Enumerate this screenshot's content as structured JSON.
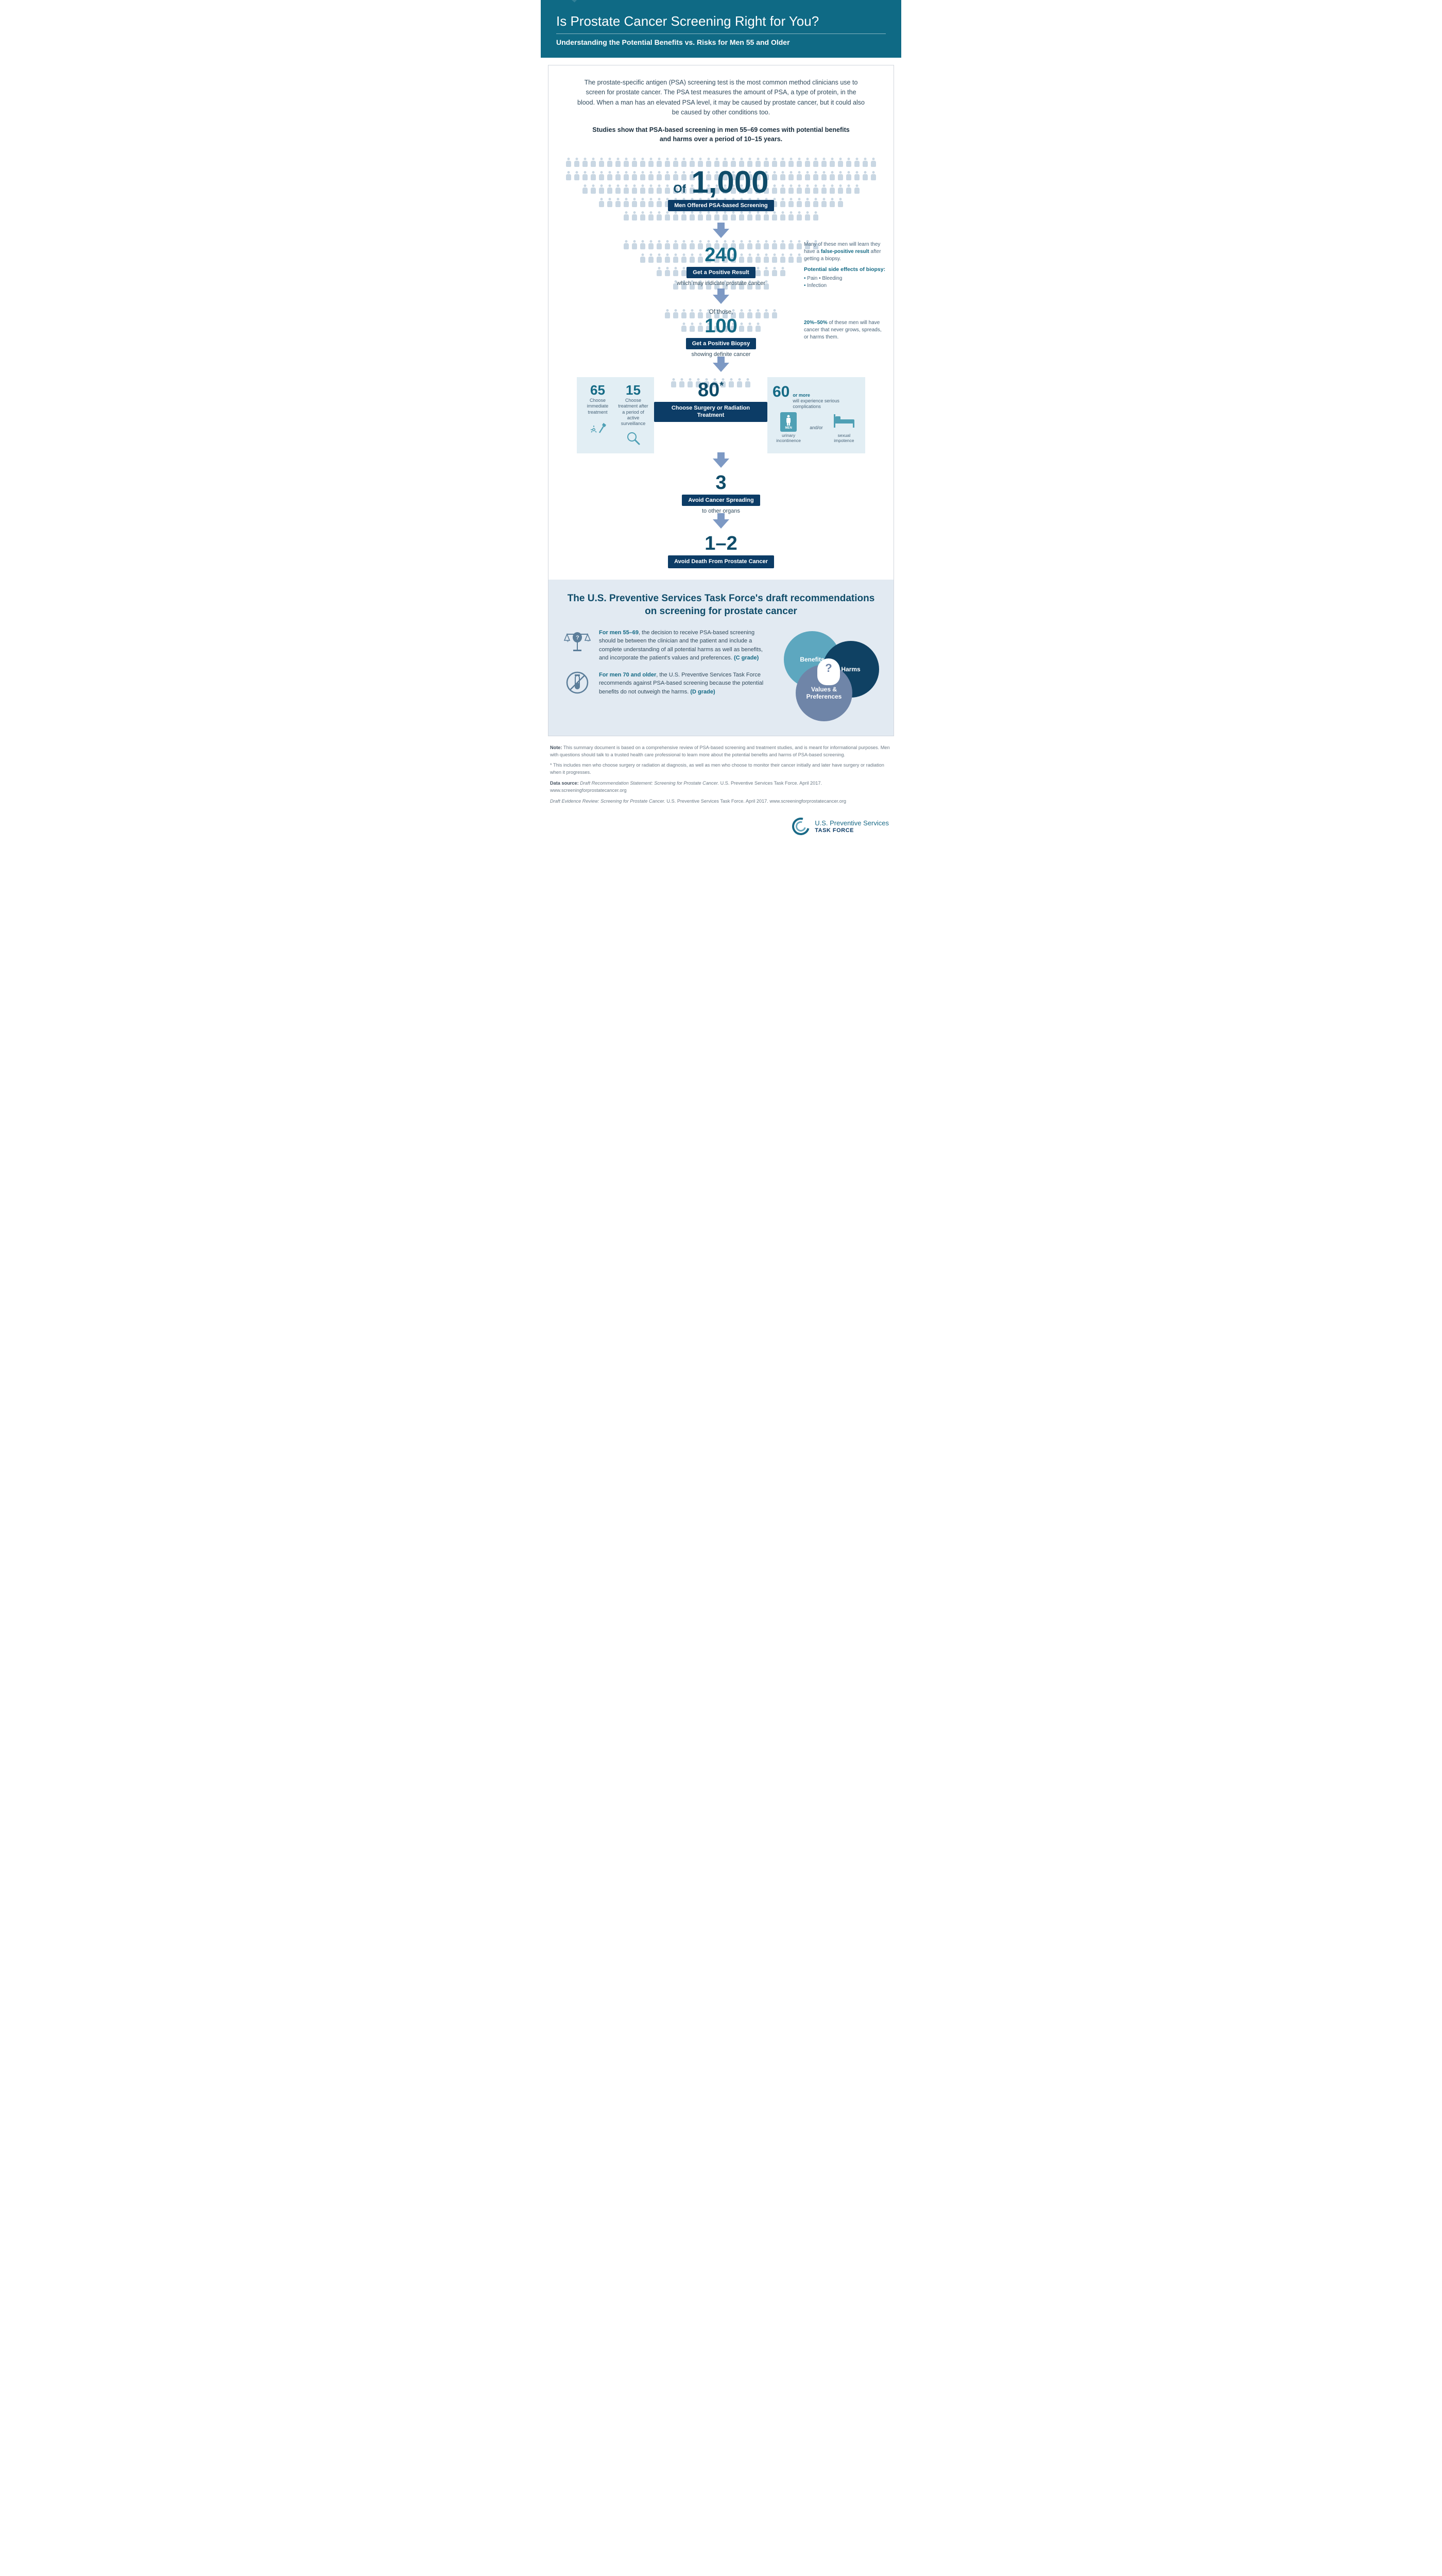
{
  "header": {
    "title": "Is Prostate Cancer Screening Right for You?",
    "subtitle": "Understanding the Potential Benefits vs. Risks for Men 55 and Older",
    "bg_color": "#0f6a85"
  },
  "intro": {
    "para": "The prostate-specific antigen (PSA) screening test is the most common method clinicians use to screen for prostate cancer. The PSA test measures the amount of PSA, a type of protein, in the blood. When a man has an elevated PSA level, it may be caused by prostate cancer, but it could also be caused by other conditions too.",
    "bold": "Studies show that PSA-based screening in men 55–69 comes with potential benefits and harms over a period of 10–15 years."
  },
  "funnel": {
    "stage1": {
      "of": "Of",
      "number": "1,000",
      "label": "Men Offered PSA-based Screening",
      "people_rows": [
        38,
        38,
        34,
        30,
        24
      ]
    },
    "stage2": {
      "number": "240",
      "label": "Get a Positive Result",
      "subtext": "which may indicate prostate cancer",
      "people_rows": [
        24,
        20,
        16,
        12
      ],
      "note": {
        "line1": "Many of these men will learn they have a",
        "bold": "false-positive result",
        "line2": "after getting a biopsy.",
        "head": "Potential side effects of biopsy:",
        "items": [
          "Pain • Bleeding",
          "Infection"
        ]
      }
    },
    "stage3": {
      "pretext": "Of those,",
      "number": "100",
      "label": "Get a Positive Biopsy",
      "subtext": "showing definite cancer",
      "people_rows": [
        14,
        10
      ],
      "note": {
        "bold": "20%–50%",
        "text": " of these men will have cancer that never grows, spreads, or harms them."
      }
    },
    "stage4": {
      "number": "80",
      "star": "*",
      "label": "Choose Surgery or Radiation Treatment",
      "people_rows": [
        10
      ],
      "left": {
        "a_num": "65",
        "a_text": "Choose immediate treatment",
        "b_num": "15",
        "b_text": "Choose treatment after a period of active surveillance"
      },
      "right": {
        "num": "60",
        "or_more": "or more",
        "text": "will experience serious complications",
        "andor": "and/or",
        "comp_a": "urinary incontinence",
        "comp_b": "sexual impotence",
        "men_label": "MEN"
      }
    },
    "stage5": {
      "number": "3",
      "label": "Avoid Cancer Spreading",
      "subtext": "to other organs"
    },
    "stage6": {
      "number": "1–2",
      "label": "Avoid Death From Prostate Cancer"
    }
  },
  "recs": {
    "title": "The U.S. Preventive Services Task Force's draft recommendations on screening for prostate cancer",
    "item1": {
      "lead": "For men 55–69",
      "text": ", the decision to receive PSA-based screening should be between the clinician and the patient and include a complete understanding of all potential harms as well as benefits, and incorporate the patient's values and preferences. ",
      "grade": "(C grade)"
    },
    "item2": {
      "lead": "For men 70 and older",
      "text": ", the U.S. Preventive Services Task Force recommends against PSA-based screening because the potential benefits do not outweigh the harms. ",
      "grade": "(D grade)"
    },
    "venn": {
      "c1": "Benefits",
      "c2": "Harms",
      "c3": "Values & Preferences"
    }
  },
  "footnotes": {
    "note_label": "Note:",
    "note": " This summary document is based on a comprehensive review of PSA-based screening and treatment studies, and is meant for informational purposes. Men with questions should talk to a trusted health care professional to learn more about the potential benefits and harms of PSA-based screening.",
    "star": "* This includes men who choose surgery or radiation at diagnosis, as well as men who choose to monitor their cancer initially and later have surgery or radiation when it progresses.",
    "ds_label": "Data source:",
    "ds1_i": " Draft Recommendation Statement: Screening for Prostate Cancer.",
    "ds1_r": " U.S. Preventive Services Task Force. April 2017. www.screeningforprostatecancer.org",
    "ds2_i": "Draft Evidence Review: Screening for Prostate Cancer.",
    "ds2_r": " U.S. Preventive Services Task Force. April 2017. www.screeningforprostatecancer.org"
  },
  "footer": {
    "line1": "U.S. Preventive Services",
    "line2": "TASK FORCE"
  },
  "colors": {
    "pill_bg": "#0c3c66",
    "teal": "#146a85",
    "dark_navy": "#0f4c69",
    "arrow": "#7d99c4",
    "person_light": "#c9d7e3",
    "box_bg": "#e2eef4",
    "recs_bg": "#e2eaf2"
  }
}
